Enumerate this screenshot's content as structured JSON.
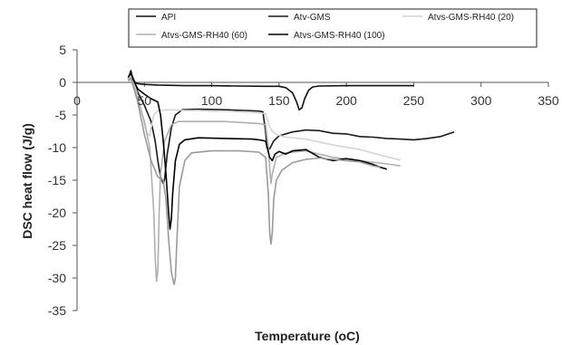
{
  "chart_data": {
    "type": "line",
    "xlabel": "Temperature (oC)",
    "ylabel": "DSC heat flow (J/g)",
    "xlim": [
      0,
      350
    ],
    "ylim": [
      -35,
      5
    ],
    "xticks": [
      0,
      50,
      100,
      150,
      200,
      250,
      300,
      350
    ],
    "yticks": [
      5,
      0,
      -5,
      -10,
      -15,
      -20,
      -25,
      -30,
      -35
    ],
    "grid": false,
    "legend_position": "top",
    "series": [
      {
        "name": "API",
        "color": "#111111",
        "points": [
          [
            38,
            0.5
          ],
          [
            40,
            1.8
          ],
          [
            41,
            0.9
          ],
          [
            43,
            0.0
          ],
          [
            45,
            -0.2
          ],
          [
            50,
            -0.3
          ],
          [
            60,
            -0.4
          ],
          [
            80,
            -0.5
          ],
          [
            100,
            -0.5
          ],
          [
            120,
            -0.55
          ],
          [
            140,
            -0.6
          ],
          [
            150,
            -0.6
          ],
          [
            155,
            -0.8
          ],
          [
            160,
            -1.6
          ],
          [
            163,
            -3.0
          ],
          [
            165,
            -4.2
          ],
          [
            167,
            -3.9
          ],
          [
            169,
            -2.5
          ],
          [
            172,
            -1.2
          ],
          [
            175,
            -0.7
          ],
          [
            180,
            -0.55
          ],
          [
            200,
            -0.5
          ],
          [
            220,
            -0.5
          ],
          [
            240,
            -0.5
          ],
          [
            250,
            -0.5
          ]
        ]
      },
      {
        "name": "Atv-GMS",
        "color": "#1a1a1a",
        "points": [
          [
            38,
            0.6
          ],
          [
            40,
            1.3
          ],
          [
            42,
            0.2
          ],
          [
            45,
            -1.5
          ],
          [
            50,
            -3.5
          ],
          [
            55,
            -6.0
          ],
          [
            58,
            -9.0
          ],
          [
            60,
            -12.0
          ],
          [
            62,
            -14.5
          ],
          [
            64,
            -15.5
          ],
          [
            65,
            -14.8
          ],
          [
            67,
            -11.0
          ],
          [
            70,
            -7.0
          ],
          [
            73,
            -5.0
          ],
          [
            78,
            -4.2
          ],
          [
            90,
            -4.1
          ],
          [
            110,
            -4.2
          ],
          [
            125,
            -4.3
          ],
          [
            135,
            -4.4
          ],
          [
            138,
            -4.5
          ],
          [
            140,
            -7.5
          ],
          [
            141,
            -10.0
          ],
          [
            143,
            -10.2
          ],
          [
            146,
            -9.0
          ],
          [
            150,
            -8.2
          ],
          [
            160,
            -7.6
          ],
          [
            170,
            -7.3
          ],
          [
            180,
            -7.4
          ],
          [
            190,
            -7.8
          ],
          [
            200,
            -7.9
          ],
          [
            210,
            -8.3
          ],
          [
            220,
            -8.4
          ],
          [
            230,
            -8.6
          ],
          [
            240,
            -8.7
          ],
          [
            250,
            -8.8
          ],
          [
            260,
            -8.6
          ],
          [
            270,
            -8.3
          ],
          [
            280,
            -7.6
          ]
        ]
      },
      {
        "name": "Atvs-GMS-RH40 (20)",
        "color": "#d4d4d4",
        "points": [
          [
            38,
            0.5
          ],
          [
            40,
            1.0
          ],
          [
            42,
            0.0
          ],
          [
            45,
            -2.0
          ],
          [
            48,
            -4.5
          ],
          [
            50,
            -6.5
          ],
          [
            52,
            -7.8
          ],
          [
            54,
            -8.2
          ],
          [
            55,
            -7.0
          ],
          [
            57,
            -5.0
          ],
          [
            60,
            -4.3
          ],
          [
            70,
            -4.2
          ],
          [
            80,
            -4.3
          ],
          [
            90,
            -4.3
          ],
          [
            100,
            -4.4
          ],
          [
            110,
            -4.4
          ],
          [
            120,
            -4.5
          ],
          [
            130,
            -4.6
          ],
          [
            140,
            -4.8
          ],
          [
            143,
            -6.8
          ],
          [
            145,
            -7.5
          ],
          [
            148,
            -8.0
          ],
          [
            155,
            -8.4
          ],
          [
            170,
            -8.7
          ],
          [
            190,
            -9.6
          ],
          [
            210,
            -10.3
          ],
          [
            230,
            -11.4
          ],
          [
            240,
            -11.9
          ]
        ]
      },
      {
        "name": "Atvs-GMS-RH40 (60)",
        "color": "#b0b0b0",
        "points": [
          [
            38,
            0.3
          ],
          [
            40,
            0.8
          ],
          [
            42,
            -0.5
          ],
          [
            45,
            -2.5
          ],
          [
            50,
            -6.0
          ],
          [
            54,
            -10.0
          ],
          [
            57,
            -20.0
          ],
          [
            58,
            -27.0
          ],
          [
            59,
            -30.5
          ],
          [
            60,
            -29.0
          ],
          [
            61,
            -20.0
          ],
          [
            62,
            -14.0
          ],
          [
            65,
            -9.0
          ],
          [
            70,
            -6.5
          ],
          [
            75,
            -6.0
          ],
          [
            90,
            -6.0
          ],
          [
            110,
            -6.0
          ],
          [
            125,
            -6.2
          ],
          [
            135,
            -6.3
          ],
          [
            140,
            -6.5
          ],
          [
            142,
            -10.0
          ],
          [
            143,
            -13.0
          ],
          [
            144,
            -15.5
          ],
          [
            145,
            -14.0
          ],
          [
            148,
            -11.5
          ],
          [
            155,
            -10.8
          ],
          [
            170,
            -10.5
          ],
          [
            190,
            -11.5
          ],
          [
            210,
            -12.0
          ],
          [
            230,
            -12.5
          ],
          [
            240,
            -12.8
          ]
        ]
      },
      {
        "name": "Atvs-GMS-RH40 (100)",
        "color": "#000000",
        "points": [
          [
            38,
            0.8
          ],
          [
            40,
            1.5
          ],
          [
            42,
            0.3
          ],
          [
            45,
            -1.0
          ],
          [
            50,
            -1.8
          ],
          [
            55,
            -2.5
          ],
          [
            60,
            -3.0
          ],
          [
            62,
            -5.0
          ],
          [
            64,
            -9.0
          ],
          [
            66,
            -14.0
          ],
          [
            68,
            -20.0
          ],
          [
            69,
            -22.5
          ],
          [
            70,
            -21.0
          ],
          [
            71,
            -17.0
          ],
          [
            73,
            -12.0
          ],
          [
            76,
            -9.5
          ],
          [
            80,
            -8.8
          ],
          [
            90,
            -8.5
          ],
          [
            110,
            -8.6
          ],
          [
            130,
            -8.7
          ],
          [
            135,
            -8.8
          ],
          [
            140,
            -9.0
          ],
          [
            143,
            -11.5
          ],
          [
            145,
            -12.0
          ],
          [
            147,
            -11.0
          ],
          [
            150,
            -10.6
          ],
          [
            155,
            -11.0
          ],
          [
            160,
            -10.5
          ],
          [
            170,
            -10.3
          ],
          [
            180,
            -11.5
          ],
          [
            190,
            -12.0
          ],
          [
            200,
            -11.7
          ],
          [
            210,
            -12.0
          ],
          [
            220,
            -12.6
          ],
          [
            225,
            -13.0
          ],
          [
            230,
            -13.3
          ]
        ]
      },
      {
        "name": "",
        "color": "#9a9a9a",
        "legend": false,
        "points": [
          [
            38,
            0.2
          ],
          [
            40,
            0.6
          ],
          [
            42,
            -0.8
          ],
          [
            45,
            -3.0
          ],
          [
            50,
            -8.0
          ],
          [
            55,
            -12.0
          ],
          [
            60,
            -14.5
          ],
          [
            64,
            -15.0
          ],
          [
            66,
            -18.0
          ],
          [
            68,
            -24.0
          ],
          [
            70,
            -29.0
          ],
          [
            72,
            -31.0
          ],
          [
            73,
            -30.0
          ],
          [
            74,
            -25.0
          ],
          [
            76,
            -16.0
          ],
          [
            80,
            -12.0
          ],
          [
            85,
            -10.8
          ],
          [
            100,
            -10.5
          ],
          [
            120,
            -10.5
          ],
          [
            135,
            -10.7
          ],
          [
            140,
            -11.5
          ],
          [
            142,
            -17.0
          ],
          [
            143,
            -23.0
          ],
          [
            144,
            -24.8
          ],
          [
            145,
            -23.0
          ],
          [
            146,
            -18.0
          ],
          [
            148,
            -15.0
          ],
          [
            152,
            -13.5
          ],
          [
            160,
            -12.3
          ],
          [
            170,
            -11.8
          ],
          [
            180,
            -11.6
          ],
          [
            190,
            -11.8
          ],
          [
            200,
            -12.0
          ],
          [
            210,
            -12.2
          ],
          [
            215,
            -12.5
          ],
          [
            220,
            -12.8
          ],
          [
            225,
            -13.0
          ]
        ]
      }
    ]
  }
}
